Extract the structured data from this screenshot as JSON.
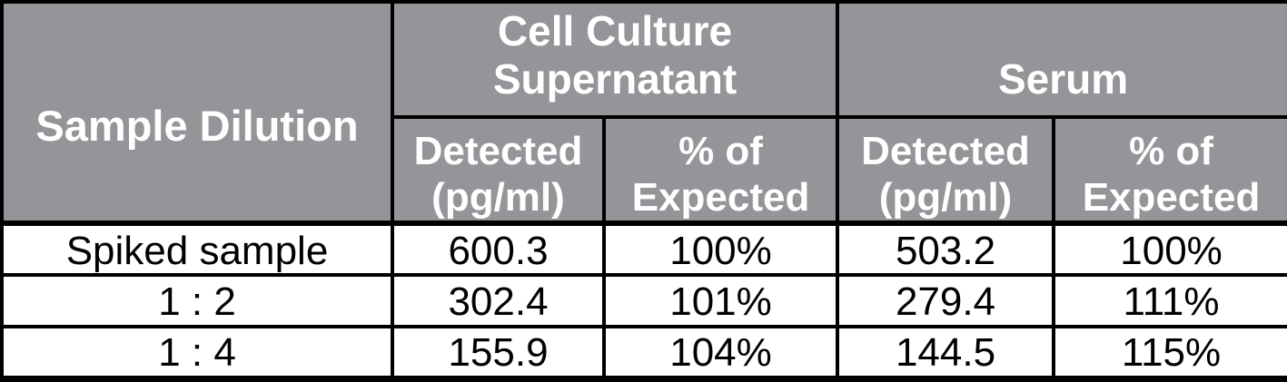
{
  "colors": {
    "header_bg": "#939598",
    "header_text": "#ffffff",
    "border": "#000000",
    "row_bg": "#ffffff",
    "row_text": "#000000"
  },
  "table": {
    "header": {
      "row_label": "Sample Dilution",
      "groups": [
        {
          "label": "Cell Culture Supernatant",
          "subcolumns": [
            "Detected (pg/ml)",
            "% of Expected"
          ]
        },
        {
          "label": "Serum",
          "subcolumns": [
            "Detected (pg/ml)",
            "% of Expected"
          ]
        }
      ]
    },
    "rows": [
      {
        "label": "Spiked sample",
        "values": [
          "600.3",
          "100%",
          "503.2",
          "100%"
        ]
      },
      {
        "label": "1 : 2",
        "values": [
          "302.4",
          "101%",
          "279.4",
          "111%"
        ]
      },
      {
        "label": "1 : 4",
        "values": [
          "155.9",
          "104%",
          "144.5",
          "115%"
        ]
      }
    ]
  },
  "chart_data": {
    "type": "table",
    "title": "",
    "columns": [
      "Sample Dilution",
      "Cell Culture Supernatant - Detected (pg/ml)",
      "Cell Culture Supernatant - % of Expected",
      "Serum - Detected (pg/ml)",
      "Serum - % of Expected"
    ],
    "rows": [
      [
        "Spiked sample",
        "600.3",
        "100%",
        "503.2",
        "100%"
      ],
      [
        "1 : 2",
        "302.4",
        "101%",
        "279.4",
        "111%"
      ],
      [
        "1 : 4",
        "155.9",
        "104%",
        "144.5",
        "115%"
      ]
    ]
  }
}
